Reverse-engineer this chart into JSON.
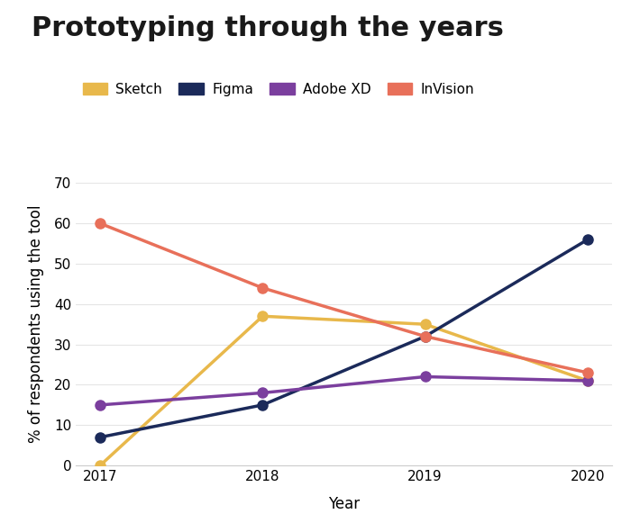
{
  "title": "Prototyping through the years",
  "xlabel": "Year",
  "ylabel": "% of respondents using the tool",
  "years": [
    2017,
    2018,
    2019,
    2020
  ],
  "series": {
    "Sketch": {
      "values": [
        0,
        37,
        35,
        21
      ],
      "color": "#E8B84B",
      "linewidth": 2.5,
      "markersize": 8
    },
    "Figma": {
      "values": [
        7,
        15,
        32,
        56
      ],
      "color": "#1B2A5A",
      "linewidth": 2.5,
      "markersize": 8
    },
    "Adobe XD": {
      "values": [
        15,
        18,
        22,
        21
      ],
      "color": "#7B3F9E",
      "linewidth": 2.5,
      "markersize": 8
    },
    "InVision": {
      "values": [
        60,
        44,
        32,
        23
      ],
      "color": "#E8705A",
      "linewidth": 2.5,
      "markersize": 8
    }
  },
  "ylim": [
    0,
    70
  ],
  "yticks": [
    0,
    10,
    20,
    30,
    40,
    50,
    60,
    70
  ],
  "title_fontsize": 22,
  "title_fontweight": "bold",
  "axis_label_fontsize": 12,
  "tick_fontsize": 11,
  "legend_fontsize": 11,
  "background_color": "#FFFFFF",
  "grid_color": "#CCCCCC",
  "grid_alpha": 0.5,
  "legend_order": [
    "Sketch",
    "Figma",
    "Adobe XD",
    "InVision"
  ]
}
